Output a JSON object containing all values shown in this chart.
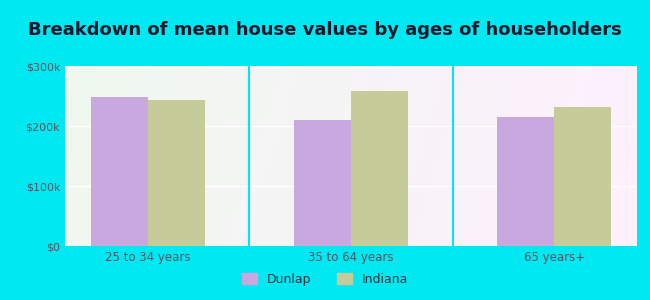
{
  "title": "Breakdown of mean house values by ages of householders",
  "categories": [
    "25 to 34 years",
    "35 to 64 years",
    "65 years+"
  ],
  "dunlap_values": [
    248000,
    210000,
    215000
  ],
  "indiana_values": [
    243000,
    258000,
    232000
  ],
  "dunlap_color": "#c9a8e0",
  "indiana_color": "#c5cc9a",
  "ylim": [
    0,
    300000
  ],
  "yticks": [
    0,
    100000,
    200000,
    300000
  ],
  "ytick_labels": [
    "$0",
    "$100k",
    "$200k",
    "$300k"
  ],
  "legend_labels": [
    "Dunlap",
    "Indiana"
  ],
  "background_outer": "#00e8f0",
  "title_fontsize": 13,
  "bar_width": 0.28
}
